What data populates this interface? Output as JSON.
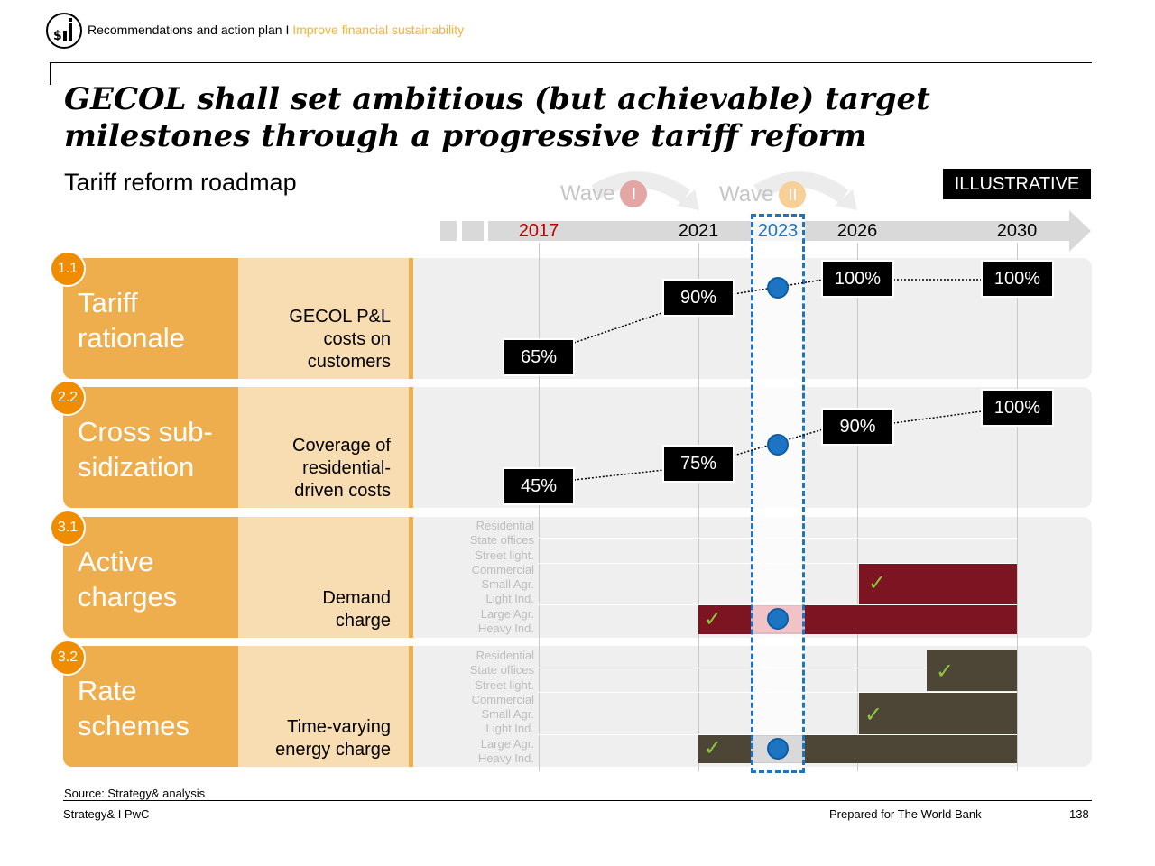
{
  "header": {
    "breadcrumb": "Recommendations and action plan I",
    "breadcrumb_accent": "Improve financial sustainability"
  },
  "title": "GECOL shall set ambitious (but achievable) target milestones through a progressive tariff reform",
  "subtitle": "Tariff reform roadmap",
  "tag": "ILLUSTRATIVE",
  "waves": [
    {
      "label": "Wave",
      "numeral": "I",
      "color": "#e4a5a5"
    },
    {
      "label": "Wave",
      "numeral": "II",
      "color": "#f8cf97"
    }
  ],
  "timeline": {
    "years": [
      "2017",
      "2021",
      "2023",
      "2026",
      "2030"
    ],
    "year_colors": {
      "2017": "#c00000",
      "2021": "#000000",
      "2023": "#1c74c2",
      "2026": "#000000",
      "2030": "#000000"
    }
  },
  "rows": [
    {
      "badge": "1.1",
      "label_line1": "Tariff",
      "label_line2": "rationale",
      "desc": [
        "GECOL P&L",
        "costs on",
        "customers"
      ],
      "values": [
        {
          "year": "2017",
          "text": "65%"
        },
        {
          "year": "2021",
          "text": "90%"
        },
        {
          "year": "2026",
          "text": "100%"
        },
        {
          "year": "2030",
          "text": "100%"
        }
      ]
    },
    {
      "badge": "2.2",
      "label_line1": "Cross sub-",
      "label_line2": "sidization",
      "desc": [
        "Coverage of",
        "residential-",
        "driven costs"
      ],
      "values": [
        {
          "year": "2017",
          "text": "45%"
        },
        {
          "year": "2021",
          "text": "75%"
        },
        {
          "year": "2026",
          "text": "90%"
        },
        {
          "year": "2030",
          "text": "100%"
        }
      ]
    },
    {
      "badge": "3.1",
      "label_line1": "Active",
      "label_line2": "charges",
      "desc": [
        "Demand",
        "charge"
      ]
    },
    {
      "badge": "3.2",
      "label_line1": "Rate",
      "label_line2": "schemes",
      "desc": [
        "Time-varying",
        "energy charge"
      ]
    }
  ],
  "customer_classes": [
    "Residential",
    "State offices",
    "Street light.",
    "Commercial",
    "Small Agr.",
    "Light Ind.",
    "Large Agr.",
    "Heavy Ind."
  ],
  "bar_colors": {
    "active": "#7C1521",
    "rate": "#4D4536",
    "check": "#8CC63F"
  },
  "footer": {
    "source": "Source: Strategy& analysis",
    "left": "Strategy& I PwC",
    "center": "Prepared for The World Bank",
    "page": "138"
  }
}
